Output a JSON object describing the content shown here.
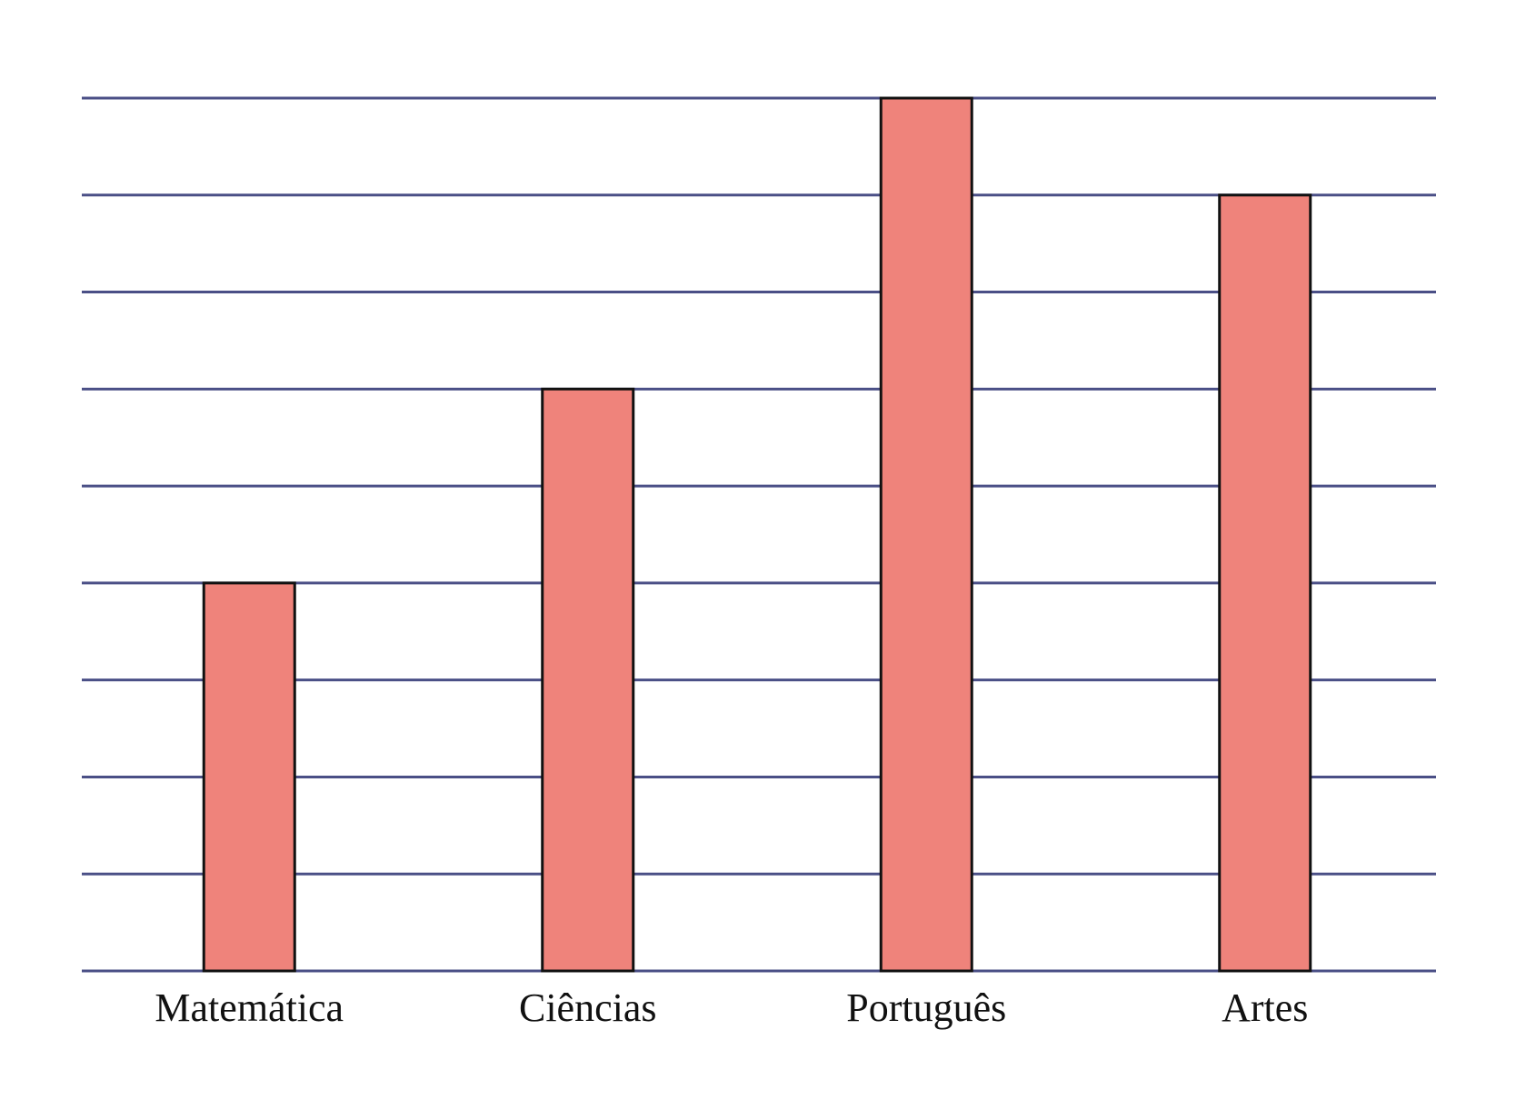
{
  "chart_data": {
    "type": "bar",
    "title": "",
    "xlabel": "",
    "ylabel": "",
    "categories": [
      "Matemática",
      "Ciências",
      "Português",
      "Artes"
    ],
    "values": [
      4,
      6,
      9,
      8
    ],
    "ylim": [
      0,
      9
    ],
    "grid": true,
    "legend": "none",
    "colors": {
      "bar_fill": "#ef837b",
      "bar_stroke": "#111111",
      "grid": "#4a4f86",
      "label": "#111111"
    }
  }
}
